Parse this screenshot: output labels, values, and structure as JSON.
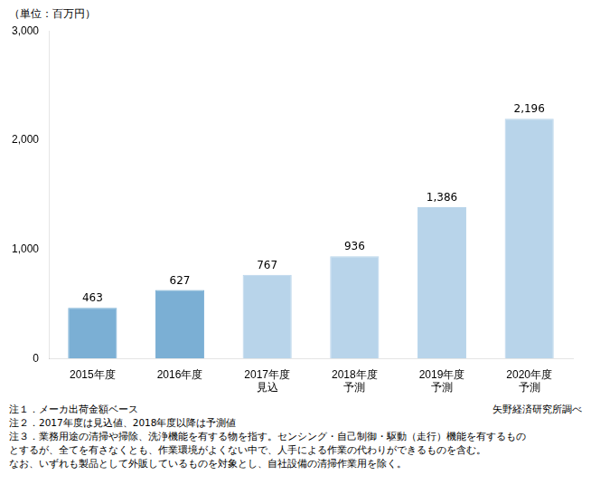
{
  "chart_data": {
    "type": "bar",
    "categories": [
      "2015年度",
      "2016年度",
      "2017年度\n見込",
      "2018年度\n予測",
      "2019年度\n予測",
      "2020年度\n予測"
    ],
    "values": [
      463,
      627,
      767,
      936,
      1386,
      2196
    ],
    "value_labels": [
      "463",
      "627",
      "767",
      "936",
      "1,386",
      "2,196"
    ],
    "data_labels": true,
    "colors": [
      "#7bafd4",
      "#7bafd4",
      "#b8d4ea",
      "#b8d4ea",
      "#b8d4ea",
      "#b8d4ea"
    ],
    "ylabel": "（単位：百万円）",
    "ylim": [
      0,
      3000
    ],
    "yticks": [
      0,
      {
        "value": 1000,
        "label": "1,000"
      },
      {
        "value": 2000,
        "label": "2,000"
      },
      {
        "value": 3000,
        "label": "3,000"
      }
    ],
    "grid": false,
    "annotations": [
      "注１．メーカ出荷金額ベース",
      "矢野経済研究所調べ",
      "注２．2017年度は見込値、2018年度以降は予測値",
      "注３．業務用途の清掃や掃除、洗浄機能を有する物を指す。センシング・自己制御・駆動（走行）機能を有するもの",
      "とするが、全てを有さなくとも、作業環境がよくない中で、人手による作業の代わりができるものを含む。",
      "なお、いずれも製品として外販しているものを対象とし、自社設備の清掃作業用を除く。"
    ]
  }
}
